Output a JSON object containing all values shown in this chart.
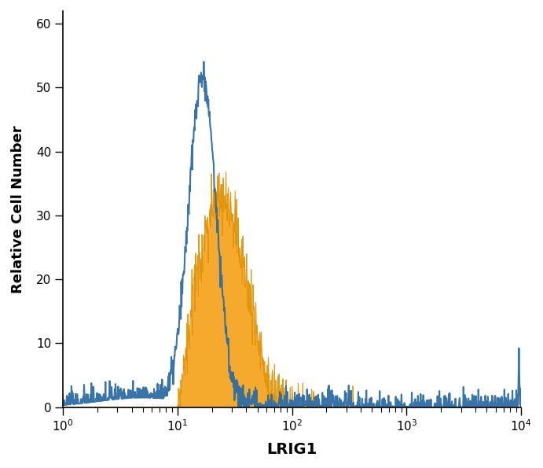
{
  "title": "",
  "xlabel": "LRIG1",
  "ylabel": "Relative Cell Number",
  "xlim_log": [
    1,
    4
  ],
  "ylim": [
    0,
    62
  ],
  "yticks": [
    0,
    10,
    20,
    30,
    40,
    50,
    60
  ],
  "blue_color": "#2e6da4",
  "orange_color": "#f5a623",
  "orange_edge_color": "#e09000",
  "background_color": "#ffffff",
  "xlabel_fontsize": 14,
  "ylabel_fontsize": 13,
  "tick_fontsize": 11
}
